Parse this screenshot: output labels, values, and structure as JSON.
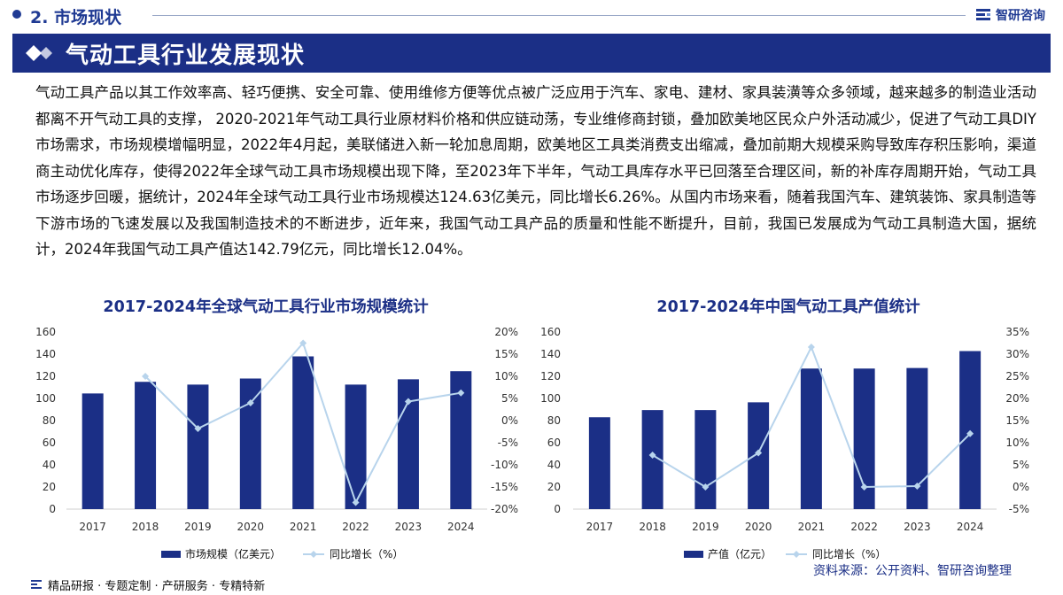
{
  "header": {
    "section_label": "2. 市场现状",
    "brand_name": "智研咨询"
  },
  "banner": {
    "title": "气动工具行业发展现状"
  },
  "body": {
    "paragraph": "气动工具产品以其工作效率高、轻巧便携、安全可靠、使用维修方便等优点被广泛应用于汽车、家电、建材、家具装潢等众多领域，越来越多的制造业活动都离不开气动工具的支撑， 2020-2021年气动工具行业原材料价格和供应链动荡，专业维修商封锁，叠加欧美地区民众户外活动减少，促进了气动工具DIY市场需求，市场规模增幅明显，2022年4月起，美联储进入新一轮加息周期，欧美地区工具类消费支出缩减，叠加前期大规模采购导致库存积压影响，渠道商主动优化库存，使得2022年全球气动工具市场规模出现下降，至2023年下半年，气动工具库存水平已回落至合理区间，新的补库存周期开始，气动工具市场逐步回暖，据统计，2024年全球气动工具行业市场规模达124.63亿美元，同比增长6.26%。从国内市场来看，随着我国汽车、建筑装饰、家具制造等下游市场的飞速发展以及我国制造技术的不断进步，近年来，我国气动工具产品的质量和性能不断提升，目前，我国已发展成为气动工具制造大国，据统计，2024年我国气动工具产值达142.79亿元，同比增长12.04%。"
  },
  "colors": {
    "bar": "#1b2f86",
    "line": "#b8d4ec",
    "axis_text": "#333333"
  },
  "chart_data": [
    {
      "type": "bar",
      "title": "2017-2024年全球气动工具行业市场规模统计",
      "categories": [
        "2017",
        "2018",
        "2019",
        "2020",
        "2021",
        "2022",
        "2023",
        "2024"
      ],
      "series": [
        {
          "name": "市场规模（亿美元）",
          "axis": "left",
          "kind": "bar",
          "values": [
            104.5,
            115,
            112.5,
            118,
            138,
            112.5,
            117.3,
            124.63
          ]
        },
        {
          "name": "同比增长（%）",
          "axis": "right",
          "kind": "line",
          "values": [
            null,
            10,
            -1.8,
            4,
            17.5,
            -18.5,
            4.3,
            6.26
          ]
        }
      ],
      "left_axis": {
        "min": 0,
        "max": 160,
        "step": 20,
        "ticks": [
          "0",
          "20",
          "40",
          "60",
          "80",
          "100",
          "120",
          "140",
          "160"
        ]
      },
      "right_axis": {
        "min": -20,
        "max": 20,
        "step": 5,
        "ticks": [
          "-20%",
          "-15%",
          "-10%",
          "-5%",
          "0%",
          "5%",
          "10%",
          "15%",
          "20%"
        ]
      },
      "legend": [
        "市场规模（亿美元）",
        "同比增长（%）"
      ]
    },
    {
      "type": "bar",
      "title": "2017-2024年中国气动工具产值统计",
      "categories": [
        "2017",
        "2018",
        "2019",
        "2020",
        "2021",
        "2022",
        "2023",
        "2024"
      ],
      "series": [
        {
          "name": "产值（亿元）",
          "axis": "left",
          "kind": "bar",
          "values": [
            83,
            89.5,
            89.5,
            96.5,
            127,
            127,
            127.5,
            142.79
          ]
        },
        {
          "name": "同比增长（%）",
          "axis": "right",
          "kind": "line",
          "values": [
            null,
            7.2,
            0,
            7.7,
            31.6,
            0,
            0.2,
            12.04
          ]
        }
      ],
      "left_axis": {
        "min": 0,
        "max": 160,
        "step": 20,
        "ticks": [
          "0",
          "20",
          "40",
          "60",
          "80",
          "100",
          "120",
          "140",
          "160"
        ]
      },
      "right_axis": {
        "min": -5,
        "max": 35,
        "step": 5,
        "ticks": [
          "-5%",
          "0%",
          "5%",
          "10%",
          "15%",
          "20%",
          "25%",
          "30%",
          "35%"
        ]
      },
      "legend": [
        "产值（亿元）",
        "同比增长（%）"
      ]
    }
  ],
  "source": "资料来源：公开资料、智研咨询整理",
  "footer": {
    "text": "精品研报 · 专题定制 · 产研服务 · 专精特新"
  }
}
